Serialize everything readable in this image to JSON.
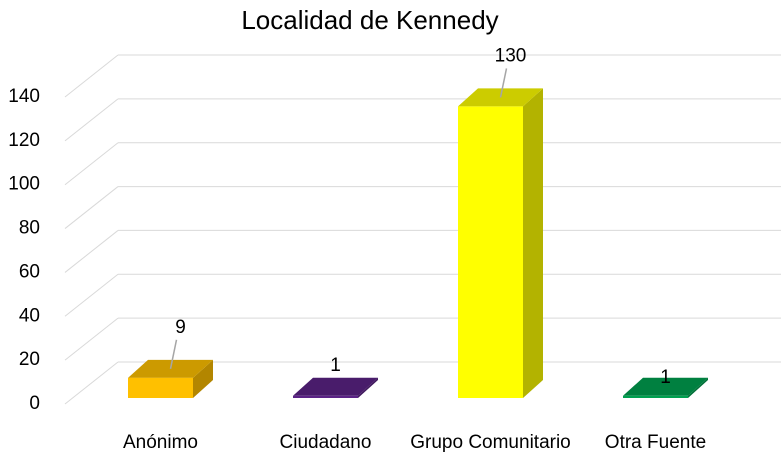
{
  "chart_data": {
    "type": "bar3d",
    "title": "Localidad de Kennedy",
    "categories": [
      "Anónimo",
      "Ciudadano",
      "Grupo Comunitario",
      "Otra Fuente"
    ],
    "values": [
      9,
      1,
      130,
      1
    ],
    "colors": [
      "#ffc000",
      "#5b2386",
      "#ffff00",
      "#00a050"
    ],
    "ylim": [
      0,
      140
    ],
    "yticks": [
      0,
      20,
      40,
      60,
      80,
      100,
      120,
      140
    ],
    "grid": true
  }
}
